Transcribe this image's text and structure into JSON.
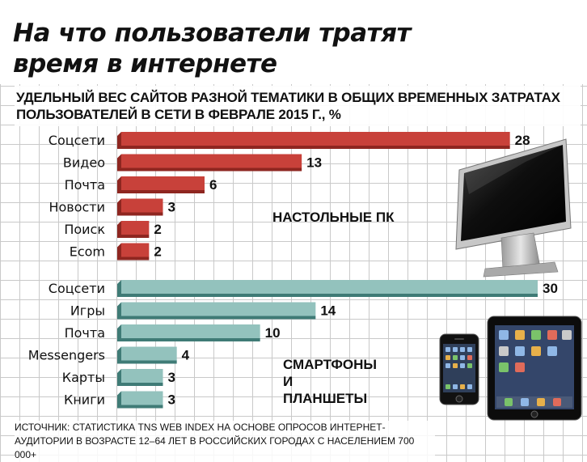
{
  "header": {
    "title": "На что пользователи тратят время в интернете",
    "subtitle": "УДЕЛЬНЫЙ ВЕС САЙТОВ РАЗНОЙ ТЕМАТИКИ В ОБЩИХ ВРЕМЕННЫХ ЗАТРАТАХ ПОЛЬЗОВАТЕЛЕЙ В СЕТИ В ФЕВРАЛЕ 2015 Г., %"
  },
  "groups": {
    "desktop_label": "НАСТОЛЬНЫЕ ПК",
    "mobile_label": "СМАРТФОНЫ И ПЛАНШЕТЫ"
  },
  "footnote": "ИСТОЧНИК: СТАТИСТИКА TNS WEB INDEX НА ОСНОВЕ ОПРОСОВ ИНТЕРНЕТ-АУДИТОРИИ В ВОЗРАСТЕ 12–64 ЛЕТ В РОССИЙСКИХ ГОРОДАХ С НАСЕЛЕНИЕМ 700 000+",
  "colors": {
    "desktop_bar": "#c8413a",
    "desktop_bar_side": "#8e2620",
    "mobile_bar": "#93c2bd",
    "mobile_bar_side": "#3f7b76"
  },
  "icons": [
    "monitor-icon",
    "smartphone-icon",
    "tablet-icon"
  ],
  "chart_data": [
    {
      "type": "bar",
      "orientation": "horizontal",
      "group": "НАСТОЛЬНЫЕ ПК",
      "categories": [
        "Соцсети",
        "Видео",
        "Почта",
        "Новости",
        "Поиск",
        "Ecom"
      ],
      "values": [
        28,
        13,
        6,
        3,
        2,
        2
      ],
      "xlim": [
        0,
        30
      ],
      "grid": true
    },
    {
      "type": "bar",
      "orientation": "horizontal",
      "group": "СМАРТФОНЫ И ПЛАНШЕТЫ",
      "categories": [
        "Соцсети",
        "Игры",
        "Почта",
        "Messengers",
        "Карты",
        "Книги"
      ],
      "values": [
        30,
        14,
        10,
        4,
        3,
        3
      ],
      "xlim": [
        0,
        30
      ],
      "grid": true
    }
  ]
}
